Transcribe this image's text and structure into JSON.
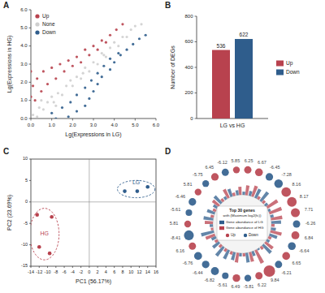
{
  "chart_data": [
    {
      "label": "A",
      "type": "scatter",
      "x_label": "Lg(Expressions in LG)",
      "y_label": "Lg(Expressions in HG)",
      "xlim": [
        0,
        6
      ],
      "ylim": [
        0,
        6
      ],
      "xticks": [
        {
          "value": 0,
          "label": "0.0"
        },
        {
          "value": 1,
          "label": "1.0"
        },
        {
          "value": 2,
          "label": "2.0"
        },
        {
          "value": 3,
          "label": "3.0"
        },
        {
          "value": 4,
          "label": "4.0"
        },
        {
          "value": 5,
          "label": "5.0"
        },
        {
          "value": 6,
          "label": "6.0"
        }
      ],
      "yticks": [
        {
          "value": 0,
          "label": "0.0"
        },
        {
          "value": 1,
          "label": "1.0"
        },
        {
          "value": 2,
          "label": "2.0"
        },
        {
          "value": 3,
          "label": "3.0"
        },
        {
          "value": 4,
          "label": "4.0"
        },
        {
          "value": 5,
          "label": "5.0"
        },
        {
          "value": 6,
          "label": "6.0"
        }
      ],
      "legend": "upper left",
      "series": [
        {
          "name": "Up",
          "color": "#b8424e",
          "marker": "circle",
          "x": [
            0,
            0.1,
            0.2,
            0.3,
            0.5,
            0.6,
            0.8,
            1.0,
            1.2,
            1.4,
            1.6,
            1.8,
            2.0,
            2.2,
            2.4,
            2.6,
            2.8,
            3.0,
            3.2,
            3.4,
            3.6,
            3.8,
            4.1,
            4.4,
            0
          ],
          "values": [
            1.2,
            1.8,
            1.0,
            2.2,
            1.5,
            2.6,
            1.9,
            2.8,
            2.2,
            3.0,
            2.6,
            3.2,
            2.9,
            3.4,
            3.1,
            3.8,
            3.5,
            4.0,
            3.8,
            4.3,
            4.2,
            4.6,
            4.9,
            5.2,
            2.6
          ]
        },
        {
          "name": "None",
          "color": "#cfcfcf",
          "marker": "circle",
          "x": [
            0.1,
            0.3,
            0.4,
            0.6,
            0.8,
            1.0,
            1.1,
            1.3,
            1.5,
            1.7,
            1.9,
            2.0,
            2.2,
            2.4,
            2.6,
            2.8,
            3.0,
            3.2,
            3.4,
            3.6,
            3.8,
            4.0,
            4.2,
            4.4,
            4.6,
            4.8,
            5.0,
            5.3,
            0.5,
            1.2,
            2.5,
            3.5
          ],
          "values": [
            0.2,
            0.1,
            0.6,
            0.5,
            0.9,
            1.2,
            0.9,
            1.4,
            1.3,
            1.8,
            2.1,
            1.8,
            2.3,
            2.2,
            2.8,
            2.6,
            3.1,
            3.0,
            3.6,
            3.4,
            3.9,
            4.2,
            4.0,
            4.5,
            4.5,
            4.9,
            5.1,
            5.2,
            1.0,
            0.7,
            2.5,
            3.5
          ]
        },
        {
          "name": "Down",
          "color": "#2f5d8c",
          "marker": "circle",
          "x": [
            1.2,
            1.8,
            1.0,
            2.2,
            1.5,
            2.6,
            1.9,
            2.8,
            2.2,
            3.0,
            2.6,
            3.2,
            2.9,
            3.4,
            3.2,
            3.8,
            3.5,
            4.0,
            3.8,
            4.3,
            4.2,
            4.6,
            4.9,
            5.2,
            5.5
          ],
          "values": [
            0,
            0.1,
            0.3,
            0.4,
            0.6,
            0.7,
            0.9,
            1.1,
            1.3,
            1.5,
            1.7,
            1.9,
            2.1,
            2.3,
            2.5,
            2.7,
            2.9,
            3.1,
            3.3,
            3.5,
            3.6,
            3.8,
            4.1,
            4.4,
            4.6
          ]
        }
      ]
    },
    {
      "label": "B",
      "type": "bar",
      "y_label": "Number of DEGs",
      "categories": [
        "LG vs HG"
      ],
      "ylim": [
        0,
        800
      ],
      "yticks": [
        0,
        200,
        400,
        600,
        800
      ],
      "data_labels": true,
      "legend": "right",
      "series": [
        {
          "name": "Up",
          "color": "#b8424e",
          "values": [
            536
          ]
        },
        {
          "name": "Down",
          "color": "#2f5d8c",
          "values": [
            622
          ]
        }
      ]
    },
    {
      "label": "C",
      "type": "scatter",
      "x_label": "PC1 (56.17%)",
      "y_label": "PC2 (23.69%)",
      "xlim": [
        -14,
        16
      ],
      "ylim": [
        -15,
        10
      ],
      "xticks": [
        -14,
        -12,
        -10,
        -8,
        -6,
        -4,
        -2,
        0,
        2,
        4,
        6,
        8,
        10,
        12,
        14,
        16
      ],
      "yticks": [
        -15,
        -10,
        -5,
        0,
        5,
        10
      ],
      "series": [
        {
          "name": "HG",
          "color": "#b8424e",
          "marker": "circle",
          "x": [
            -12.5,
            -9,
            -12,
            -9.5
          ],
          "values": [
            -3,
            -3.5,
            -10.5,
            -12
          ]
        },
        {
          "name": "LG",
          "color": "#2f5d8c",
          "marker": "circle",
          "x": [
            8.5,
            11.5,
            14
          ],
          "values": [
            2.5,
            2.5,
            3.5
          ]
        }
      ]
    },
    {
      "label": "D",
      "type": "circular",
      "title": "Top 30 genes",
      "subtitle": "with (Maximum log2(fc))",
      "fold_changes": [
        6.25,
        6.67,
        -6.45,
        -7.28,
        8.16,
        8.17,
        7.71,
        -6.26,
        6.84,
        -6.64,
        6.65,
        -6.21,
        9.84,
        6.22,
        -5.81,
        6.49,
        -5.61,
        -6.82,
        -6.44,
        -6.76,
        6.16,
        -8.41,
        5.81,
        -5.61,
        -6.46,
        5.81,
        -5.75,
        6.45,
        -6.12,
        5.85
      ],
      "classes": [
        {
          "name": "Up",
          "color": "#b8424e"
        },
        {
          "name": "Down",
          "color": "#2f5d8c"
        }
      ],
      "rlim": [
        0,
        10
      ],
      "series": [
        {
          "name": "Gene abundance of LG",
          "color": "#2f5d8c",
          "values": [
            2,
            3,
            6,
            7,
            2,
            1.5,
            2,
            6,
            3,
            5,
            2,
            7,
            1,
            3,
            6,
            2,
            5,
            6,
            7,
            5,
            3,
            8,
            2,
            6,
            5,
            3,
            6,
            2,
            5,
            3
          ]
        },
        {
          "name": "Gene abundance of HG",
          "color": "#b8424e",
          "values": [
            6,
            7,
            2,
            2,
            8,
            8,
            7,
            2,
            7,
            2,
            6,
            2,
            9,
            6,
            2,
            6,
            2,
            2,
            2,
            2,
            6,
            1.5,
            5,
            2,
            2,
            5,
            2,
            6,
            2,
            5
          ]
        }
      ]
    }
  ]
}
